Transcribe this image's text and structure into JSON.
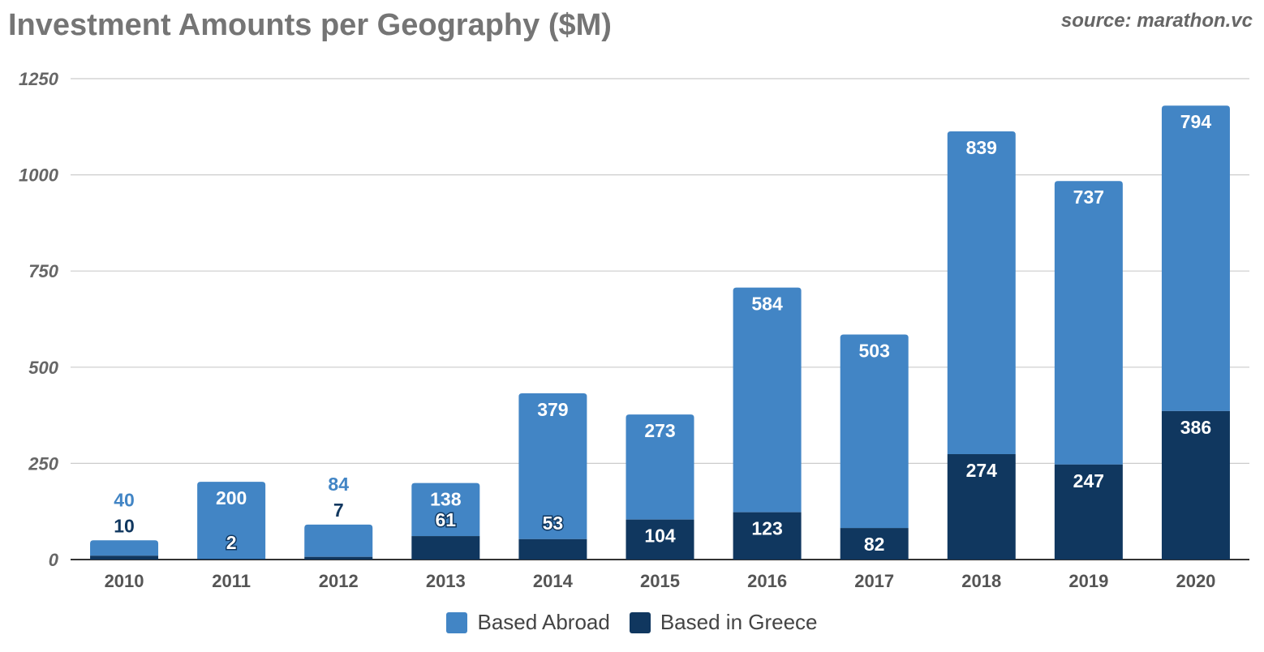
{
  "title": "Investment Amounts per Geography ($M)",
  "source": "source: marathon.vc",
  "colors": {
    "based_abroad": "#4285c5",
    "based_in_greece": "#10375f"
  },
  "chart_data": {
    "type": "bar",
    "stacked": true,
    "title": "Investment Amounts per Geography ($M)",
    "categories": [
      "2010",
      "2011",
      "2012",
      "2013",
      "2014",
      "2015",
      "2016",
      "2017",
      "2018",
      "2019",
      "2020"
    ],
    "series": [
      {
        "name": "Based in Greece",
        "values": [
          10,
          2,
          7,
          61,
          53,
          104,
          123,
          82,
          274,
          247,
          386
        ]
      },
      {
        "name": "Based Abroad",
        "values": [
          40,
          200,
          84,
          138,
          379,
          273,
          584,
          503,
          839,
          737,
          794
        ]
      }
    ],
    "yticks": [
      "0",
      "250",
      "500",
      "750",
      "1000",
      "1250"
    ],
    "ylim": [
      0,
      1250
    ],
    "xlabel": "",
    "ylabel": "",
    "grid": true,
    "legend_position": "bottom"
  }
}
